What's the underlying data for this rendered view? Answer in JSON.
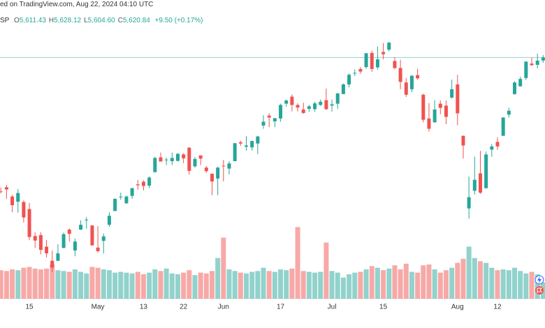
{
  "header": {
    "published": "ed on TradingView.com, Aug 22, 2024 04:10 UTC",
    "symbol": "SP",
    "ohlc": [
      {
        "key": "O",
        "value": "5,611.43"
      },
      {
        "key": "H",
        "value": "5,628.12"
      },
      {
        "key": "L",
        "value": "5,604.60"
      },
      {
        "key": "C",
        "value": "5,620.84"
      }
    ],
    "change": "+9.50 (+0.17%)"
  },
  "chart_data": {
    "type": "candlestick",
    "categories": [
      null,
      null,
      null,
      null,
      null,
      "15",
      null,
      null,
      null,
      null,
      null,
      null,
      null,
      null,
      null,
      null,
      null,
      "May",
      null,
      null,
      null,
      null,
      null,
      null,
      null,
      "13",
      null,
      null,
      null,
      null,
      null,
      null,
      "22",
      null,
      null,
      null,
      null,
      null,
      null,
      "Jun",
      null,
      null,
      null,
      null,
      null,
      null,
      null,
      null,
      null,
      "17",
      null,
      null,
      null,
      null,
      null,
      null,
      null,
      null,
      "Jul",
      null,
      null,
      null,
      null,
      null,
      null,
      null,
      null,
      "15",
      null,
      null,
      null,
      null,
      null,
      null,
      null,
      null,
      null,
      null,
      null,
      null,
      "Aug",
      null,
      null,
      null,
      null,
      null,
      null,
      "12",
      null,
      null,
      null,
      null,
      null,
      null,
      null,
      null
    ],
    "open": [
      5204,
      5217,
      5188,
      5172,
      5171,
      5149,
      5065,
      5068,
      5032,
      4988,
      4988,
      5028,
      5085,
      5020,
      5085,
      5114,
      5098,
      5029,
      5050,
      5100,
      5143,
      5188,
      5167,
      5190,
      5226,
      5234,
      5222,
      5264,
      5310,
      5303,
      5298,
      5299,
      5319,
      5340,
      5282,
      5316,
      5278,
      5259,
      5244,
      5284,
      5275,
      5298,
      5357,
      5343,
      5341,
      5353,
      5409,
      5440,
      5422,
      5431,
      5477,
      5499,
      5473,
      5459,
      5461,
      5460,
      5473,
      5488,
      5471,
      5477,
      5507,
      5537,
      5572,
      5585,
      5591,
      5635,
      5590,
      5638,
      5645,
      5610,
      5588,
      5543,
      5522,
      5566,
      5505,
      5431,
      5419,
      5477,
      5471,
      5496,
      5537,
      5377,
      5151,
      5206,
      5260,
      5214,
      5334,
      5358,
      5377,
      5443,
      5507,
      5531,
      5557,
      5602,
      5598,
      5611.43
    ],
    "high": [
      5216,
      5224,
      5193,
      5211,
      5176,
      5168,
      5077,
      5077,
      5053,
      5020,
      5039,
      5076,
      5089,
      5057,
      5114,
      5124,
      5099,
      5096,
      5073,
      5139,
      5182,
      5200,
      5191,
      5215,
      5240,
      5239,
      5251,
      5312,
      5325,
      5309,
      5325,
      5323,
      5323,
      5342,
      5311,
      5316,
      5283,
      5260,
      5281,
      5302,
      5298,
      5355,
      5362,
      5376,
      5362,
      5376,
      5441,
      5447,
      5432,
      5477,
      5490,
      5506,
      5478,
      5480,
      5473,
      5483,
      5490,
      5524,
      5490,
      5510,
      5540,
      5571,
      5584,
      5591,
      5635,
      5642,
      5655,
      5666,
      5669,
      5622,
      5614,
      5557,
      5566,
      5586,
      5508,
      5479,
      5488,
      5487,
      5487,
      5552,
      5567,
      5378,
      5250,
      5312,
      5330,
      5328,
      5351,
      5372,
      5435,
      5464,
      5547,
      5561,
      5609,
      5620,
      5633,
      5628.12
    ],
    "low": [
      5198,
      5181,
      5139,
      5138,
      5107,
      5052,
      5028,
      5008,
      4998,
      4953,
      4987,
      5027,
      5048,
      5002,
      5084,
      5088,
      5035,
      5014,
      5011,
      5094,
      5143,
      5178,
      5165,
      5181,
      5209,
      5207,
      5214,
      5263,
      5297,
      5286,
      5286,
      5297,
      5292,
      5256,
      5278,
      5286,
      5262,
      5192,
      5192,
      5235,
      5257,
      5298,
      5346,
      5331,
      5331,
      5320,
      5399,
      5404,
      5404,
      5421,
      5468,
      5453,
      5453,
      5446,
      5452,
      5452,
      5470,
      5458,
      5452,
      5461,
      5507,
      5528,
      5563,
      5570,
      5586,
      5576,
      5583,
      5615,
      5640,
      5584,
      5522,
      5498,
      5513,
      5552,
      5419,
      5390,
      5418,
      5444,
      5413,
      5493,
      5410,
      5306,
      5119,
      5194,
      5196,
      5213,
      5312,
      5333,
      5377,
      5434,
      5505,
      5531,
      5551,
      5595,
      5587,
      5604.6
    ],
    "close": [
      5202,
      5210,
      5161,
      5199,
      5123,
      5062,
      5051,
      5022,
      5011,
      4967,
      5011,
      5071,
      5072,
      5048,
      5100,
      5116,
      5036,
      5018,
      5064,
      5128,
      5181,
      5188,
      5188,
      5214,
      5223,
      5221,
      5247,
      5308,
      5297,
      5303,
      5308,
      5321,
      5307,
      5268,
      5305,
      5306,
      5267,
      5235,
      5278,
      5283,
      5291,
      5354,
      5353,
      5347,
      5361,
      5375,
      5421,
      5434,
      5432,
      5473,
      5487,
      5473,
      5465,
      5448,
      5469,
      5478,
      5483,
      5460,
      5475,
      5509,
      5537,
      5567,
      5573,
      5577,
      5634,
      5585,
      5615,
      5631,
      5667,
      5588,
      5545,
      5505,
      5564,
      5556,
      5427,
      5399,
      5459,
      5464,
      5436,
      5522,
      5447,
      5347,
      5186,
      5240,
      5200,
      5319,
      5344,
      5344,
      5434,
      5455,
      5543,
      5554,
      5608,
      5597,
      5611,
      5620.84
    ],
    "volume": [
      3.5,
      3.4,
      3.6,
      3.5,
      3.8,
      3.9,
      3.7,
      3.6,
      3.7,
      4.2,
      3.5,
      3.4,
      3.3,
      3.6,
      3.3,
      3.1,
      3.9,
      3.8,
      3.6,
      3.5,
      3.2,
      3.3,
      3.2,
      3.1,
      3.3,
      3.0,
      3.2,
      3.6,
      3.4,
      3.7,
      3.1,
      3.0,
      3.2,
      3.5,
      2.9,
      3.2,
      3.1,
      3.4,
      5.0,
      7.5,
      3.6,
      3.4,
      3.2,
      3.1,
      3.3,
      3.4,
      3.8,
      3.4,
      3.3,
      3.6,
      3.5,
      3.7,
      8.8,
      3.4,
      3.3,
      3.2,
      3.3,
      6.9,
      3.4,
      3.2,
      2.6,
      3.0,
      3.2,
      3.3,
      3.6,
      4.0,
      3.8,
      3.5,
      3.7,
      4.1,
      3.6,
      4.3,
      3.3,
      3.2,
      4.1,
      4.2,
      3.6,
      3.2,
      3.5,
      3.8,
      4.4,
      4.9,
      6.4,
      5.0,
      4.6,
      4.4,
      3.8,
      3.5,
      3.6,
      3.5,
      3.8,
      3.4,
      3.1,
      3.3,
      3.0,
      2.0
    ],
    "ylim": [
      4870,
      5752
    ],
    "volume_ylim": [
      0,
      12
    ],
    "up_color": "#26a69a",
    "down_color": "#ef5350"
  }
}
